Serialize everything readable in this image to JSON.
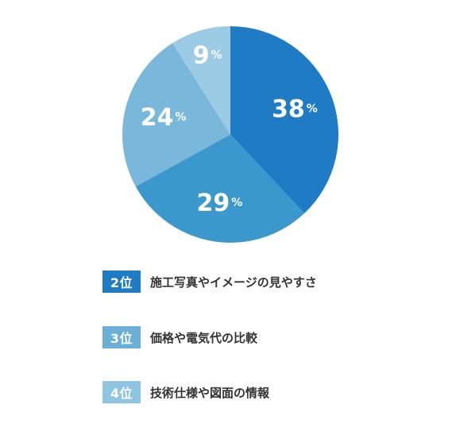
{
  "chart_data": {
    "type": "pie",
    "title": "",
    "values": [
      38,
      29,
      24,
      9
    ],
    "labels": [
      "38",
      "29",
      "24",
      "9"
    ],
    "unit": "%",
    "colors": [
      "#1f7bc4",
      "#3a98cc",
      "#79b7db",
      "#9ccbe5"
    ]
  },
  "ranking": {
    "items": [
      {
        "rank": "2位",
        "text": "施工写真やイメージの見やすさ",
        "color": "#1f7bc4"
      },
      {
        "rank": "3位",
        "text": "価格や電気代の比較",
        "color": "#6aafd6"
      },
      {
        "rank": "4位",
        "text": "技術仕様や図面の情報",
        "color": "#8ec5e3"
      }
    ]
  }
}
